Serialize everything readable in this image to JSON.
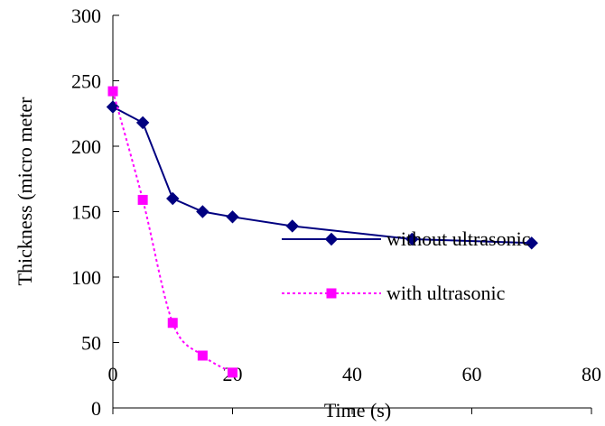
{
  "chart_data": {
    "type": "line",
    "title": "",
    "xlabel": "Time (s)",
    "ylabel": "Thickness (micro meter",
    "xlim": [
      0,
      80
    ],
    "ylim": [
      0,
      300
    ],
    "xticks": [
      0,
      20,
      40,
      60,
      80
    ],
    "yticks": [
      0,
      50,
      100,
      150,
      200,
      250,
      300
    ],
    "grid": false,
    "legend_position": "right",
    "series": [
      {
        "name": "without ultrasonic",
        "color": "#000080",
        "marker": "diamond",
        "line_style": "solid",
        "x": [
          0,
          5,
          10,
          15,
          20,
          30,
          50,
          70
        ],
        "y": [
          230,
          218,
          160,
          150,
          146,
          139,
          129,
          126
        ]
      },
      {
        "name": "with ultrasonic",
        "color": "#ff00ff",
        "marker": "square",
        "line_style": "dotted",
        "x": [
          0,
          5,
          10,
          15,
          20
        ],
        "y": [
          242,
          159,
          65,
          40,
          27
        ]
      }
    ]
  }
}
